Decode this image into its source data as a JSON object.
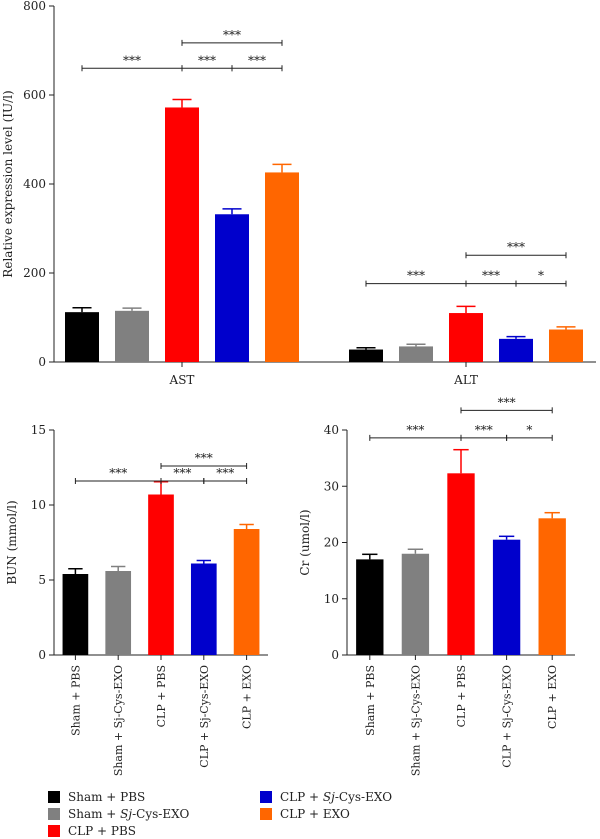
{
  "colors": {
    "sham_pbs": "#000000",
    "sham_sjcys": "#808080",
    "clp_pbs": "#ff0000",
    "clp_sjcys": "#0000cc",
    "clp_exo": "#ff6600"
  },
  "legend": [
    {
      "key": "sham_pbs",
      "pre": "Sham + PBS",
      "em": "",
      "post": ""
    },
    {
      "key": "sham_sjcys",
      "pre": "Sham + ",
      "em": "Sj",
      "post": "-Cys-EXO"
    },
    {
      "key": "clp_pbs",
      "pre": "CLP + PBS",
      "em": "",
      "post": ""
    },
    {
      "key": "clp_sjcys",
      "pre": "CLP + ",
      "em": "Sj",
      "post": "-Cys-EXO"
    },
    {
      "key": "clp_exo",
      "pre": "CLP + EXO",
      "em": "",
      "post": ""
    }
  ],
  "chart_data": [
    {
      "type": "bar",
      "ylabel": "Relative expression level (IU/l)",
      "ylim": [
        0,
        800
      ],
      "yticks": [
        0,
        200,
        400,
        600,
        800
      ],
      "groups": [
        "AST",
        "ALT"
      ],
      "series": [
        {
          "name": "Sham + PBS",
          "color_key": "sham_pbs",
          "values": [
            112,
            28
          ],
          "errors": [
            10,
            4
          ]
        },
        {
          "name": "Sham + Sj-Cys-EXO",
          "color_key": "sham_sjcys",
          "values": [
            115,
            35
          ],
          "errors": [
            6,
            5
          ]
        },
        {
          "name": "CLP + PBS",
          "color_key": "clp_pbs",
          "values": [
            572,
            110
          ],
          "errors": [
            18,
            15
          ]
        },
        {
          "name": "CLP + Sj-Cys-EXO",
          "color_key": "clp_sjcys",
          "values": [
            332,
            52
          ],
          "errors": [
            12,
            5
          ]
        },
        {
          "name": "CLP + EXO",
          "color_key": "clp_exo",
          "values": [
            426,
            73
          ],
          "errors": [
            18,
            6
          ]
        }
      ],
      "significance": [
        {
          "group": 0,
          "from": 0,
          "to": 2,
          "label": "***",
          "y": 660
        },
        {
          "group": 0,
          "from": 2,
          "to": 3,
          "label": "***",
          "y": 660
        },
        {
          "group": 0,
          "from": 3,
          "to": 4,
          "label": "***",
          "y": 660
        },
        {
          "group": 0,
          "from": 2,
          "to": 4,
          "label": "***",
          "y": 717
        },
        {
          "group": 1,
          "from": 0,
          "to": 2,
          "label": "***",
          "y": 176
        },
        {
          "group": 1,
          "from": 2,
          "to": 3,
          "label": "***",
          "y": 176
        },
        {
          "group": 1,
          "from": 3,
          "to": 4,
          "label": "*",
          "y": 176
        },
        {
          "group": 1,
          "from": 2,
          "to": 4,
          "label": "***",
          "y": 240
        }
      ]
    },
    {
      "type": "bar",
      "ylabel": "BUN (mmol/l)",
      "ylim": [
        0,
        15
      ],
      "yticks": [
        0,
        5,
        10,
        15
      ],
      "categories": [
        "Sham + PBS",
        "Sham + Sj-Cys-EXO",
        "CLP + PBS",
        "CLP + Sj-Cys-EXO",
        "CLP + EXO"
      ],
      "color_keys": [
        "sham_pbs",
        "sham_sjcys",
        "clp_pbs",
        "clp_sjcys",
        "clp_exo"
      ],
      "values": [
        5.4,
        5.6,
        10.7,
        6.1,
        8.4
      ],
      "errors": [
        0.35,
        0.3,
        0.85,
        0.2,
        0.3
      ],
      "significance": [
        {
          "from": 0,
          "to": 2,
          "label": "***",
          "y": 11.6
        },
        {
          "from": 2,
          "to": 3,
          "label": "***",
          "y": 11.6
        },
        {
          "from": 3,
          "to": 4,
          "label": "***",
          "y": 11.6
        },
        {
          "from": 2,
          "to": 4,
          "label": "***",
          "y": 12.6
        }
      ]
    },
    {
      "type": "bar",
      "ylabel": "Cr (umol/l)",
      "ylim": [
        0,
        40
      ],
      "yticks": [
        0,
        10,
        20,
        30,
        40
      ],
      "categories": [
        "Sham + PBS",
        "Sham + Sj-Cys-EXO",
        "CLP + PBS",
        "CLP + Sj-Cys-EXO",
        "CLP + EXO"
      ],
      "color_keys": [
        "sham_pbs",
        "sham_sjcys",
        "clp_pbs",
        "clp_sjcys",
        "clp_exo"
      ],
      "values": [
        17.0,
        18.0,
        32.3,
        20.5,
        24.3
      ],
      "errors": [
        0.9,
        0.8,
        4.2,
        0.6,
        1.0
      ],
      "significance": [
        {
          "from": 0,
          "to": 2,
          "label": "***",
          "y": 38.6
        },
        {
          "from": 2,
          "to": 3,
          "label": "***",
          "y": 38.6
        },
        {
          "from": 3,
          "to": 4,
          "label": "*",
          "y": 38.6
        },
        {
          "from": 2,
          "to": 4,
          "label": "***",
          "y": 43.5
        }
      ]
    }
  ]
}
